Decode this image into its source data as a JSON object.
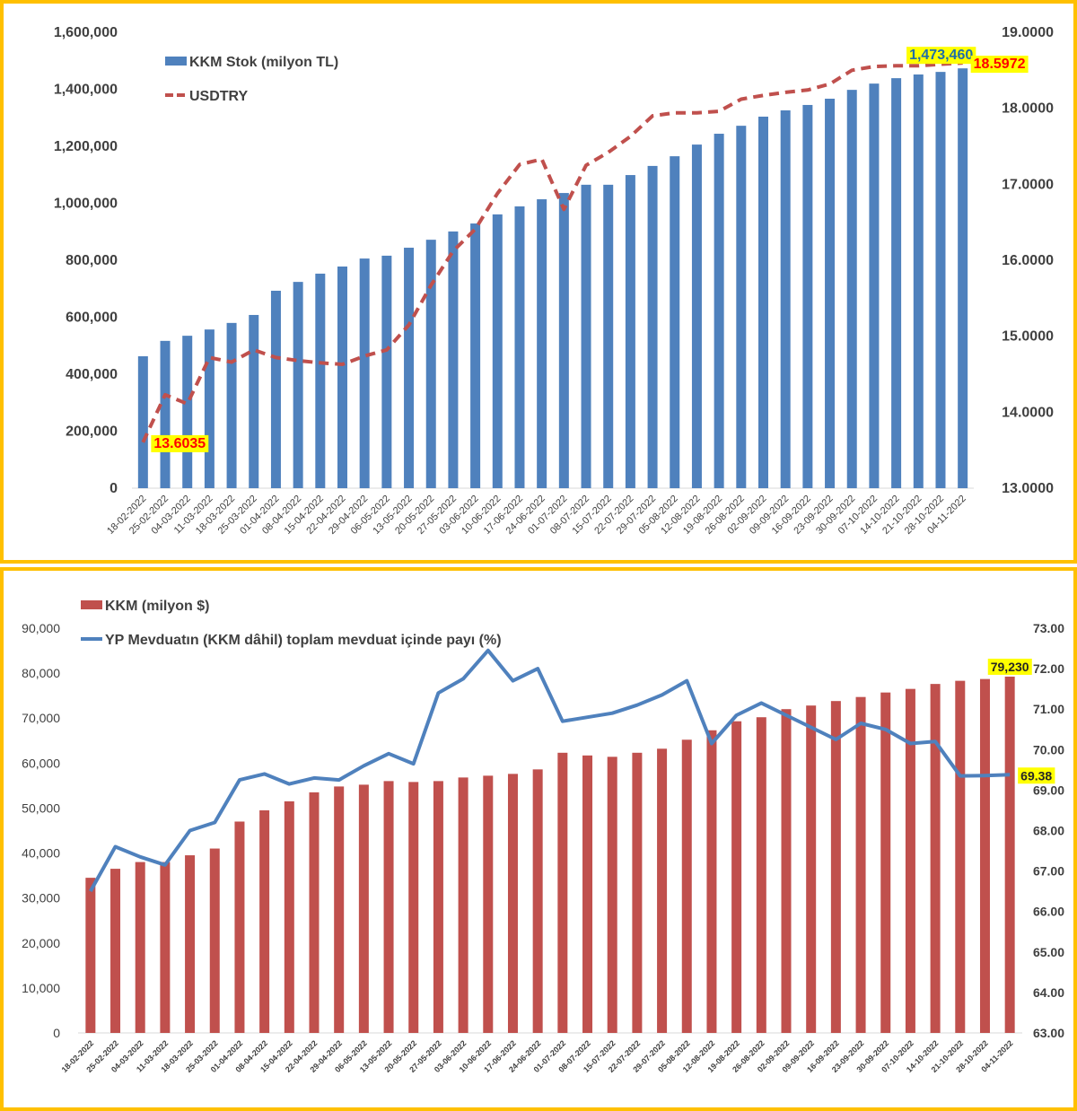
{
  "chart_data": [
    {
      "type": "bar+line",
      "title": "",
      "xlabel": "",
      "categories": [
        "18-02-2022",
        "25-02-2022",
        "04-03-2022",
        "11-03-2022",
        "18-03-2022",
        "25-03-2022",
        "01-04-2022",
        "08-04-2022",
        "15-04-2022",
        "22-04-2022",
        "29-04-2022",
        "06-05-2022",
        "13-05-2022",
        "20-05-2022",
        "27-05-2022",
        "03-06-2022",
        "10-06-2022",
        "17-06-2022",
        "24-06-2022",
        "01-07-2022",
        "08-07-2022",
        "15-07-2022",
        "22-07-2022",
        "29-07-2022",
        "05-08-2022",
        "12-08-2022",
        "19-08-2022",
        "26-08-2022",
        "02-09-2022",
        "09-09-2022",
        "16-09-2022",
        "23-09-2022",
        "30-09-2022",
        "07-10-2022",
        "14-10-2022",
        "21-10-2022",
        "28-10-2022",
        "04-11-2022"
      ],
      "series": [
        {
          "name": "KKM Stok (milyon TL)",
          "kind": "bar",
          "axis": "left",
          "color": "#4f81bd",
          "values": [
            463000,
            517000,
            535000,
            557000,
            580000,
            608000,
            693000,
            724000,
            753000,
            778000,
            806000,
            816000,
            844000,
            872000,
            901000,
            929000,
            961000,
            989000,
            1014000,
            1036000,
            1065000,
            1065000,
            1099000,
            1131000,
            1165000,
            1206000,
            1244000,
            1272000,
            1304000,
            1326000,
            1345000,
            1367000,
            1398000,
            1420000,
            1439000,
            1452000,
            1461000,
            1473460
          ]
        },
        {
          "name": "USDTRY",
          "kind": "line-dashed",
          "axis": "right",
          "color": "#c0504d",
          "values": [
            13.6035,
            14.23,
            14.11,
            14.72,
            14.66,
            14.82,
            14.72,
            14.68,
            14.65,
            14.63,
            14.74,
            14.82,
            15.15,
            15.67,
            16.12,
            16.41,
            16.88,
            17.26,
            17.33,
            16.67,
            17.25,
            17.42,
            17.63,
            17.9,
            17.94,
            17.94,
            17.96,
            18.12,
            18.17,
            18.21,
            18.24,
            18.32,
            18.5,
            18.55,
            18.56,
            18.56,
            18.58,
            18.5972
          ]
        }
      ],
      "y_left": {
        "range": [
          0,
          1600000
        ],
        "ticks": [
          "0",
          "200,000",
          "400,000",
          "600,000",
          "800,000",
          "1,000,000",
          "1,200,000",
          "1,400,000",
          "1,600,000"
        ]
      },
      "y_right": {
        "range": [
          13,
          19
        ],
        "ticks": [
          "13.0000",
          "14.0000",
          "15.0000",
          "16.0000",
          "17.0000",
          "18.0000",
          "19.0000"
        ]
      },
      "annotations": [
        {
          "text": "1,473,460",
          "target": "last-bar",
          "text_color": "#1f6ea8",
          "bg_color": "#ffff00"
        },
        {
          "text": "18.5972",
          "target": "last-line-point",
          "text_color": "#ff0000",
          "bg_color": "#ffff00"
        },
        {
          "text": "13.6035",
          "target": "first-line-point",
          "text_color": "#ff0000",
          "bg_color": "#ffff00"
        }
      ],
      "legend": {
        "placement": "top-left",
        "entries": [
          "KKM Stok (milyon TL)",
          "USDTRY"
        ]
      },
      "grid": false
    },
    {
      "type": "bar+line",
      "title": "",
      "xlabel": "",
      "categories": [
        "18-02-2022",
        "25-02-2022",
        "04-03-2022",
        "11-03-2022",
        "18-03-2022",
        "25-03-2022",
        "01-04-2022",
        "08-04-2022",
        "15-04-2022",
        "22-04-2022",
        "29-04-2022",
        "06-05-2022",
        "13-05-2022",
        "20-05-2022",
        "27-05-2022",
        "03-06-2022",
        "10-06-2022",
        "17-06-2022",
        "24-06-2022",
        "01-07-2022",
        "08-07-2022",
        "15-07-2022",
        "22-07-2022",
        "29-07-2022",
        "05-08-2022",
        "12-08-2022",
        "19-08-2022",
        "26-08-2022",
        "02-09-2022",
        "09-09-2022",
        "16-09-2022",
        "23-09-2022",
        "30-09-2022",
        "07-10-2022",
        "14-10-2022",
        "21-10-2022",
        "28-10-2022",
        "04-11-2022"
      ],
      "series": [
        {
          "name": "KKM (milyon $)",
          "kind": "bar",
          "axis": "left",
          "color": "#c0504d",
          "values": [
            34500,
            36500,
            38000,
            38000,
            39500,
            41000,
            47000,
            49500,
            51500,
            53500,
            54800,
            55200,
            56000,
            55800,
            56000,
            56800,
            57200,
            57600,
            58600,
            62300,
            61700,
            61400,
            62300,
            63200,
            65200,
            67300,
            69300,
            70200,
            72000,
            72800,
            73800,
            74700,
            75700,
            76500,
            77600,
            78300,
            78700,
            79230
          ]
        },
        {
          "name": "YP Mevduatın (KKM dâhil) toplam mevduat içinde payı (%)",
          "kind": "line",
          "axis": "right",
          "color": "#4f81bd",
          "values": [
            66.5,
            67.6,
            67.35,
            67.15,
            68.0,
            68.2,
            69.25,
            69.4,
            69.15,
            69.3,
            69.25,
            69.6,
            69.9,
            69.65,
            71.4,
            71.75,
            72.45,
            71.7,
            72.0,
            70.7,
            70.8,
            70.9,
            71.1,
            71.35,
            71.7,
            70.15,
            70.85,
            71.15,
            70.85,
            70.55,
            70.25,
            70.65,
            70.5,
            70.15,
            70.2,
            69.35,
            69.36,
            69.38
          ]
        }
      ],
      "y_left": {
        "range": [
          0,
          90000
        ],
        "ticks": [
          "0",
          "10,000",
          "20,000",
          "30,000",
          "40,000",
          "50,000",
          "60,000",
          "70,000",
          "80,000",
          "90,000"
        ]
      },
      "y_right": {
        "range": [
          63,
          73
        ],
        "ticks": [
          "63.00",
          "64.00",
          "65.00",
          "66.00",
          "67.00",
          "68.00",
          "69.00",
          "70.00",
          "71.00",
          "72.00",
          "73.00"
        ]
      },
      "annotations": [
        {
          "text": "79,230",
          "target": "last-bar",
          "text_color": "#262626",
          "bg_color": "#ffff00"
        },
        {
          "text": "69.38",
          "target": "last-line-point",
          "text_color": "#262626",
          "bg_color": "#ffff00"
        }
      ],
      "legend": {
        "placement": "top-left",
        "entries": [
          "KKM (milyon $)",
          "YP Mevduatın (KKM dâhil) toplam mevduat içinde payı (%)"
        ]
      },
      "grid": false
    }
  ]
}
